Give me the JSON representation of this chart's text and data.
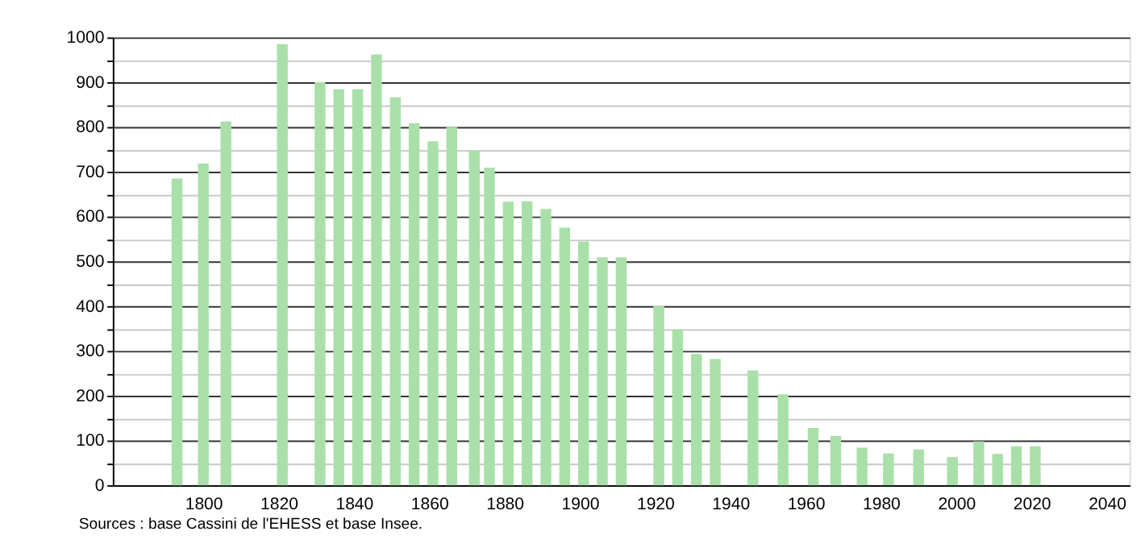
{
  "chart_data": {
    "type": "bar",
    "x": [
      1793,
      1800,
      1806,
      1821,
      1831,
      1836,
      1841,
      1846,
      1851,
      1856,
      1861,
      1866,
      1872,
      1876,
      1881,
      1886,
      1891,
      1896,
      1901,
      1906,
      1911,
      1921,
      1926,
      1931,
      1936,
      1946,
      1954,
      1962,
      1968,
      1975,
      1982,
      1990,
      1999,
      2006,
      2011,
      2016,
      2021
    ],
    "values": [
      685,
      718,
      812,
      985,
      900,
      884,
      884,
      962,
      866,
      808,
      768,
      800,
      748,
      709,
      633,
      634,
      617,
      575,
      544,
      509,
      509,
      400,
      348,
      293,
      282,
      256,
      203,
      128,
      110,
      84,
      71,
      80,
      63,
      98,
      70,
      87,
      87
    ],
    "color": "#a9e0a9",
    "xlim": [
      1778,
      2044
    ],
    "xticks": [
      1800,
      1820,
      1840,
      1860,
      1880,
      1900,
      1920,
      1940,
      1960,
      1980,
      2000,
      2020,
      2040
    ],
    "ylim": [
      0,
      1000
    ],
    "yticks": [
      0,
      {
        "value": 50,
        "label": null
      },
      100,
      {
        "value": 150,
        "label": null
      },
      200,
      {
        "value": 250,
        "label": null
      },
      300,
      {
        "value": 350,
        "label": null
      },
      400,
      {
        "value": 450,
        "label": null
      },
      500,
      {
        "value": 550,
        "label": null
      },
      600,
      {
        "value": 650,
        "label": null
      },
      700,
      {
        "value": 750,
        "label": null
      },
      800,
      {
        "value": 850,
        "label": null
      },
      900,
      {
        "value": 950,
        "label": null
      },
      1000
    ],
    "grid": "y",
    "annotations": [
      "Sources : base Cassini de l'EHESS et base Insee."
    ]
  }
}
